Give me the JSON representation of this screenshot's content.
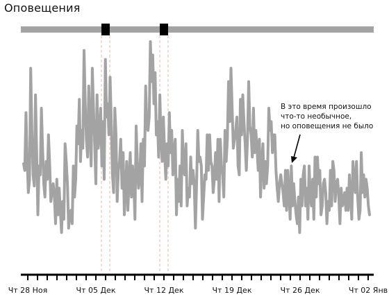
{
  "title": "Оповещения",
  "colors": {
    "series": "#a3a3a3",
    "timeline": "#a3a3a3",
    "marker": "#000000",
    "axis": "#000000",
    "guide": "#e3b8b0"
  },
  "alerts": {
    "markers": [
      "2024-12-06",
      "2024-12-12"
    ]
  },
  "annotation": {
    "lines": [
      "В это время произошло",
      "что-то необычное,",
      "но оповещения не было"
    ]
  },
  "chart_data": {
    "type": "line",
    "title": "Оповещения",
    "xlabel": "",
    "ylabel": "",
    "xlim": [
      "2024-11-28",
      "2025-01-02"
    ],
    "ylim": [
      0,
      100
    ],
    "ticks": [
      {
        "x": "2024-11-28",
        "label": "Чт 28 Ноя"
      },
      {
        "x": "2024-12-05",
        "label": "Чт 05 Дек"
      },
      {
        "x": "2024-12-12",
        "label": "Чт 12 Дек"
      },
      {
        "x": "2024-12-19",
        "label": "Чт 19 Дек"
      },
      {
        "x": "2024-12-26",
        "label": "Чт 26 Дек"
      },
      {
        "x": "2025-01-02",
        "label": "Чт 02 Янв"
      }
    ],
    "series": [
      {
        "values": [
          45,
          42,
          68,
          47,
          32,
          38,
          88,
          60,
          40,
          35,
          76,
          50,
          22,
          44,
          40,
          70,
          52,
          36,
          30,
          46,
          38,
          58,
          45,
          28,
          32,
          36,
          30,
          18,
          38,
          22,
          34,
          24,
          14,
          28,
          20,
          54,
          46,
          36,
          16,
          22,
          24,
          18,
          44,
          30,
          38,
          62,
          54,
          74,
          46,
          60,
          52,
          96,
          72,
          56,
          48,
          80,
          60,
          44,
          88,
          70,
          54,
          36,
          76,
          52,
          58,
          70,
          44,
          64,
          38,
          92,
          66,
          72,
          58,
          84,
          64,
          40,
          32,
          70,
          58,
          28,
          42,
          46,
          56,
          34,
          50,
          22,
          32,
          46,
          24,
          38,
          50,
          30,
          44,
          36,
          20,
          62,
          46,
          34,
          38,
          54,
          28,
          56,
          44,
          80,
          62,
          60,
          66,
          100,
          82,
          94,
          72,
          86,
          58,
          64,
          48,
          76,
          56,
          46,
          66,
          50,
          38,
          54,
          44,
          68,
          50,
          60,
          40,
          50,
          56,
          22,
          38,
          28,
          44,
          26,
          60,
          42,
          40,
          54,
          26,
          34,
          30,
          48,
          36,
          42,
          36,
          16,
          36,
          60,
          46,
          48,
          44,
          20,
          30,
          40,
          38,
          58,
          42,
          58,
          46,
          44,
          32,
          38,
          50,
          38,
          56,
          28,
          56,
          44,
          40,
          30,
          60,
          46,
          56,
          82,
          64,
          88,
          70,
          52,
          56,
          60,
          66,
          44,
          40,
          74,
          58,
          76,
          64,
          54,
          42,
          56,
          82,
          62,
          58,
          48,
          70,
          50,
          60,
          52,
          42,
          56,
          30,
          46,
          54,
          34,
          46,
          36,
          44,
          70,
          60,
          64,
          50,
          58,
          58,
          42,
          34,
          28,
          36,
          40,
          36,
          32,
          26,
          42,
          24,
          42,
          32,
          20,
          44,
          26,
          36,
          28,
          22,
          18,
          30,
          14,
          38,
          26,
          40,
          44,
          26,
          34,
          20,
          44,
          30,
          26,
          38,
          20,
          48,
          30,
          48,
          36,
          42,
          22,
          26,
          36,
          38,
          32,
          18,
          28,
          24,
          42,
          26,
          46,
          42,
          28,
          36,
          38,
          30,
          18,
          34,
          26,
          28,
          32,
          24,
          34,
          24,
          40,
          30,
          20,
          46,
          38,
          32,
          46,
          30,
          20,
          24,
          50,
          32,
          40,
          30,
          38,
          34,
          26,
          22
        ]
      }
    ],
    "grid": false,
    "legend": "none"
  }
}
